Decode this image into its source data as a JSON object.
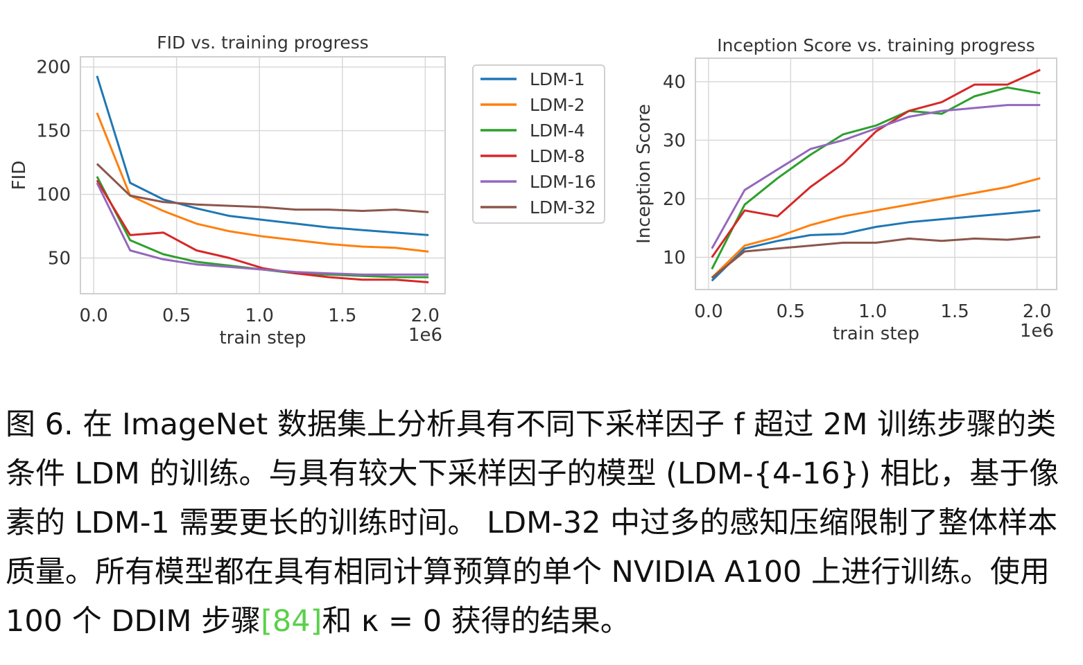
{
  "chart_data": [
    {
      "type": "line",
      "title": "FID vs. training progress",
      "xlabel": "train step",
      "ylabel": "FID",
      "x_offset_label": "1e6",
      "x": [
        0.02,
        0.22,
        0.42,
        0.62,
        0.82,
        1.02,
        1.22,
        1.42,
        1.62,
        1.82,
        2.02
      ],
      "xlim": [
        -0.08,
        2.12
      ],
      "ylim": [
        22,
        208
      ],
      "xticks": [
        0.0,
        0.5,
        1.0,
        1.5,
        2.0
      ],
      "xtick_labels": [
        "0.0",
        "0.5",
        "1.0",
        "1.5",
        "2.0"
      ],
      "yticks": [
        50,
        100,
        150,
        200
      ],
      "ytick_labels": [
        "50",
        "100",
        "150",
        "200"
      ],
      "grid": true,
      "legend_location": "outside-right",
      "series": [
        {
          "name": "LDM-1",
          "color": "#1f77b4",
          "values": [
            193,
            109,
            96,
            89,
            83,
            80,
            77,
            74,
            72,
            70,
            68
          ]
        },
        {
          "name": "LDM-2",
          "color": "#ff7f0e",
          "values": [
            164,
            99,
            87,
            77,
            71,
            67,
            64,
            61,
            59,
            58,
            55
          ]
        },
        {
          "name": "LDM-4",
          "color": "#2ca02c",
          "values": [
            114,
            64,
            53,
            47,
            44,
            41,
            38,
            37,
            36,
            35,
            35
          ]
        },
        {
          "name": "LDM-8",
          "color": "#d62728",
          "values": [
            111,
            68,
            70,
            56,
            50,
            42,
            38,
            35,
            33,
            33,
            31
          ]
        },
        {
          "name": "LDM-16",
          "color": "#9467bd",
          "values": [
            109,
            56,
            49,
            45,
            43,
            41,
            39,
            38,
            37,
            37,
            37
          ]
        },
        {
          "name": "LDM-32",
          "color": "#8c564b",
          "values": [
            124,
            99,
            94,
            92,
            91,
            90,
            88,
            88,
            87,
            88,
            86
          ]
        }
      ]
    },
    {
      "type": "line",
      "title": "Inception Score vs. training progress",
      "xlabel": "train step",
      "ylabel": "Inception Score",
      "x_offset_label": "1e6",
      "x": [
        0.02,
        0.22,
        0.42,
        0.62,
        0.82,
        1.02,
        1.22,
        1.42,
        1.62,
        1.82,
        2.02
      ],
      "xlim": [
        -0.08,
        2.12
      ],
      "ylim": [
        4.5,
        44
      ],
      "xticks": [
        0.0,
        0.5,
        1.0,
        1.5,
        2.0
      ],
      "xtick_labels": [
        "0.0",
        "0.5",
        "1.0",
        "1.5",
        "2.0"
      ],
      "yticks": [
        10,
        20,
        30,
        40
      ],
      "ytick_labels": [
        "10",
        "20",
        "30",
        "40"
      ],
      "grid": true,
      "series": [
        {
          "name": "LDM-1",
          "color": "#1f77b4",
          "values": [
            6,
            11.5,
            12.8,
            13.8,
            14,
            15.2,
            16,
            16.5,
            17,
            17.5,
            18
          ]
        },
        {
          "name": "LDM-2",
          "color": "#ff7f0e",
          "values": [
            6.5,
            12,
            13.5,
            15.5,
            17,
            18,
            19,
            20,
            21,
            22,
            23.5
          ]
        },
        {
          "name": "LDM-4",
          "color": "#2ca02c",
          "values": [
            8,
            19,
            23.5,
            27.5,
            31,
            32.5,
            35,
            34.5,
            37.5,
            39,
            38
          ]
        },
        {
          "name": "LDM-8",
          "color": "#d62728",
          "values": [
            10,
            18,
            17,
            22,
            26,
            31.5,
            35,
            36.5,
            39.5,
            39.5,
            42
          ]
        },
        {
          "name": "LDM-16",
          "color": "#9467bd",
          "values": [
            11.5,
            21.5,
            25,
            28.5,
            30,
            32,
            34,
            35,
            35.5,
            36,
            36
          ]
        },
        {
          "name": "LDM-32",
          "color": "#8c564b",
          "values": [
            6.5,
            11,
            11.5,
            12,
            12.5,
            12.5,
            13.2,
            12.8,
            13.2,
            13,
            13.5
          ]
        }
      ]
    }
  ],
  "caption": {
    "before_citation": "图 6. 在 ImageNet 数据集上分析具有不同下采样因子 f 超过 2M 训练步骤的类条件 LDM 的训练。与具有较大下采样因子的模型 (LDM-{4-16}) 相比，基于像素的 LDM-1 需要更长的训练时间。 LDM-32 中过多的感知压缩限制了整体样本质量。所有模型都在具有相同计算预算的单个 NVIDIA A100 上进行训练。使用 100 个 DDIM 步骤",
    "citation": "[84]",
    "after_citation": "和 κ = 0 获得的结果。"
  }
}
